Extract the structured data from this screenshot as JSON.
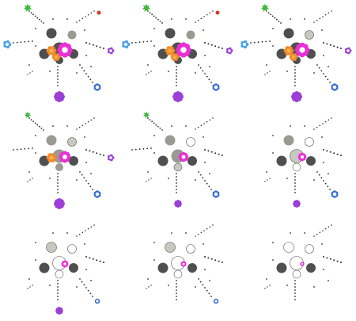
{
  "colors": {
    "background": "#ffffff",
    "dot": "#2a2a2a",
    "dark_disc": "#4f4f4f",
    "mid_disc": "#9a9a92",
    "light_disc": "#c8c8c0",
    "empty_disc_fill": "#ffffff",
    "empty_disc_stroke": "#5a5a5a",
    "orange_flower": "#f28b2c",
    "orange_flower_center": "#f6b14a",
    "magenta_flower": "#ea2fd6",
    "magenta_flower_center": "#ffffff",
    "green_leaf": "#3fb83f",
    "red_dot": "#d33a2c",
    "blue_gear": "#3b6fd1",
    "light_blue_flower": "#4aa3e8",
    "purple_flower": "#9b3fd6"
  },
  "icons": {
    "green": "green-leaf-icon",
    "red": "red-dot-icon",
    "light_blue": "light-blue-flower-icon",
    "purple_right": "purple-flower-icon",
    "blue": "blue-gear-icon",
    "purple_bottom": "purple-flower-icon",
    "orange": "orange-flower-icon",
    "magenta": "magenta-flower-icon"
  },
  "grid": {
    "rows": 3,
    "columns": 3,
    "frames": [
      {
        "row": 0,
        "col": 0,
        "stage": 0
      },
      {
        "row": 0,
        "col": 1,
        "stage": 1
      },
      {
        "row": 0,
        "col": 2,
        "stage": 2
      },
      {
        "row": 1,
        "col": 0,
        "stage": 3
      },
      {
        "row": 1,
        "col": 1,
        "stage": 4
      },
      {
        "row": 1,
        "col": 2,
        "stage": 5
      },
      {
        "row": 2,
        "col": 0,
        "stage": 6
      },
      {
        "row": 2,
        "col": 1,
        "stage": 7
      },
      {
        "row": 2,
        "col": 2,
        "stage": 8
      }
    ]
  }
}
